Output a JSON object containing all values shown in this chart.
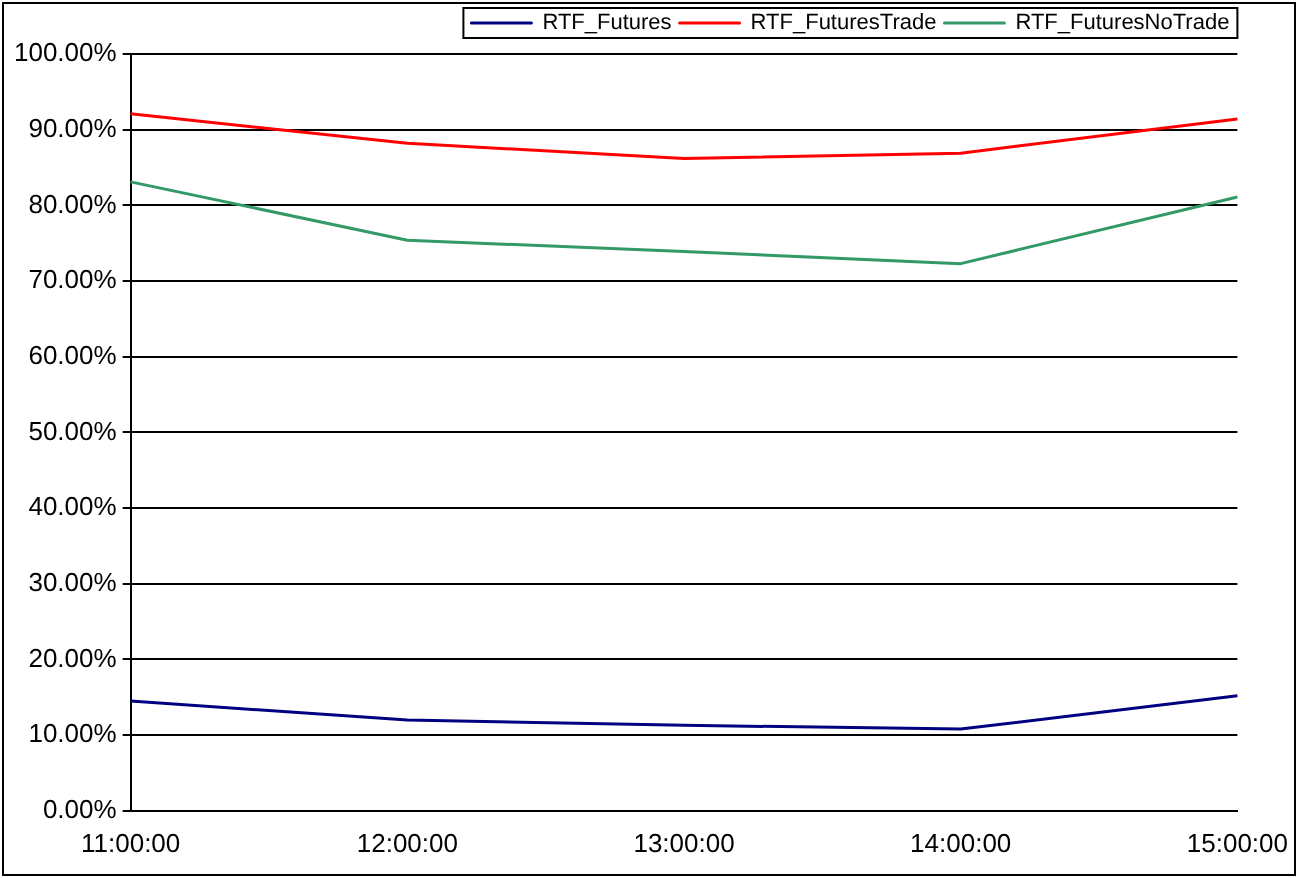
{
  "chart_data": {
    "type": "line",
    "categories": [
      "11:00:00",
      "12:00:00",
      "13:00:00",
      "14:00:00",
      "15:00:00"
    ],
    "series": [
      {
        "name": "RTF_Futures",
        "color": "#000080",
        "values": [
          14.5,
          12.0,
          11.3,
          10.8,
          15.2
        ]
      },
      {
        "name": "RTF_FuturesTrade",
        "color": "#ff0000",
        "values": [
          92.1,
          88.2,
          86.2,
          86.9,
          91.4
        ]
      },
      {
        "name": "RTF_FuturesNoTrade",
        "color": "#339966",
        "values": [
          83.1,
          75.4,
          73.9,
          72.3,
          81.1
        ]
      }
    ],
    "ylim": [
      0,
      100
    ],
    "yticks": [
      {
        "value": 0,
        "label": "0.00%"
      },
      {
        "value": 10,
        "label": "10.00%"
      },
      {
        "value": 20,
        "label": "20.00%"
      },
      {
        "value": 30,
        "label": "30.00%"
      },
      {
        "value": 40,
        "label": "40.00%"
      },
      {
        "value": 50,
        "label": "50.00%"
      },
      {
        "value": 60,
        "label": "60.00%"
      },
      {
        "value": 70,
        "label": "70.00%"
      },
      {
        "value": 80,
        "label": "80.00%"
      },
      {
        "value": 90,
        "label": "90.00%"
      },
      {
        "value": 100,
        "label": "100.00%"
      }
    ],
    "grid": "y",
    "legend": "top right",
    "marker": "none",
    "line_style": "solid"
  }
}
